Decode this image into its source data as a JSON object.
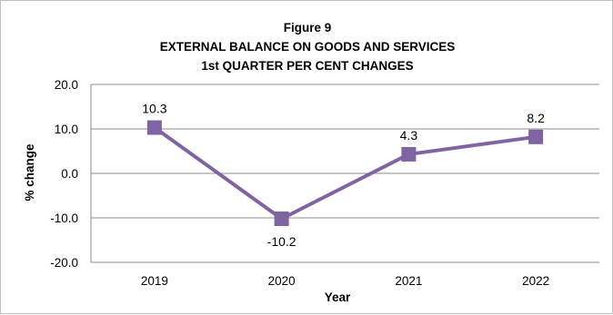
{
  "chart_data": {
    "type": "line",
    "title_lines": [
      "Figure 9",
      "EXTERNAL BALANCE ON GOODS AND SERVICES",
      "1st QUARTER PER CENT CHANGES"
    ],
    "xlabel": "Year",
    "ylabel": "% change",
    "categories": [
      "2019",
      "2020",
      "2021",
      "2022"
    ],
    "series": [
      {
        "values": [
          10.3,
          -10.2,
          4.3,
          8.2
        ]
      }
    ],
    "data_labels": [
      "10.3",
      "-10.2",
      "4.3",
      "8.2"
    ],
    "ylim": [
      -20,
      20
    ],
    "yticks": [
      20,
      10,
      0,
      -10,
      -20
    ],
    "ytick_labels": [
      "20.0",
      "10.0",
      "0.0",
      "-10.0",
      "-20.0"
    ],
    "grid": true,
    "legend": "none",
    "colors": {
      "series": "#8064a2",
      "grid": "#8c8c8c",
      "border": "#bfbfbf"
    }
  }
}
